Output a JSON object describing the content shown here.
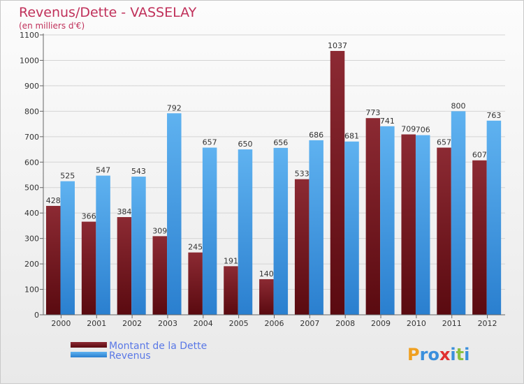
{
  "chart_data": {
    "type": "bar",
    "title": "Revenus/Dette - VASSELAY",
    "subtitle": "(en milliers d'€)",
    "categories": [
      "2000",
      "2001",
      "2002",
      "2003",
      "2004",
      "2005",
      "2006",
      "2007",
      "2008",
      "2009",
      "2010",
      "2011",
      "2012"
    ],
    "series": [
      {
        "name": "Montant de la Dette",
        "color": "#7a1a22",
        "values": [
          428,
          366,
          384,
          309,
          245,
          191,
          140,
          533,
          1037,
          773,
          709,
          657,
          607
        ]
      },
      {
        "name": "Revenus",
        "color": "#3a8fdc",
        "values": [
          525,
          547,
          543,
          792,
          657,
          650,
          656,
          686,
          681,
          741,
          706,
          800,
          763
        ]
      }
    ],
    "yticks": [
      0,
      100,
      200,
      300,
      400,
      500,
      600,
      700,
      800,
      900,
      1000,
      1100
    ],
    "ylim": [
      0,
      1100
    ],
    "grid": true,
    "legend": "bottom-left"
  },
  "logo": {
    "text": "Proxiti"
  }
}
